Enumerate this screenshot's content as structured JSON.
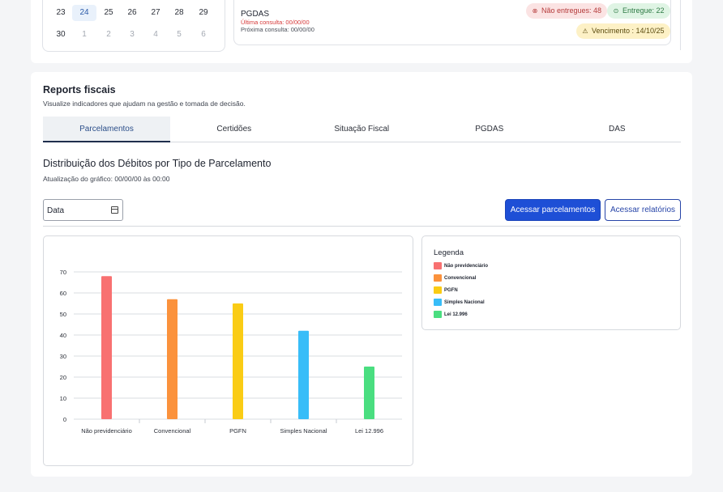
{
  "calendar": {
    "rows": [
      [
        {
          "day": "23",
          "muted": false,
          "selected": false
        },
        {
          "day": "24",
          "muted": false,
          "selected": true
        },
        {
          "day": "25",
          "muted": false,
          "selected": false
        },
        {
          "day": "26",
          "muted": false,
          "selected": false
        },
        {
          "day": "27",
          "muted": false,
          "selected": false
        },
        {
          "day": "28",
          "muted": false,
          "selected": false
        },
        {
          "day": "29",
          "muted": false,
          "selected": false
        }
      ],
      [
        {
          "day": "30",
          "muted": false,
          "selected": false
        },
        {
          "day": "1",
          "muted": true,
          "selected": false
        },
        {
          "day": "2",
          "muted": true,
          "selected": false
        },
        {
          "day": "3",
          "muted": true,
          "selected": false
        },
        {
          "day": "4",
          "muted": true,
          "selected": false
        },
        {
          "day": "5",
          "muted": true,
          "selected": false
        },
        {
          "day": "6",
          "muted": true,
          "selected": false
        }
      ]
    ]
  },
  "pgdas_card": {
    "title": "PGDAS",
    "last_query": "Última consulta: 00/00/00",
    "next_query": "Próxima consulta: 00/00/00",
    "not_delivered": "Não entregues: 48",
    "delivered": "Entregue: 22",
    "due": "Vencimento : 14/10/25"
  },
  "reports": {
    "title": "Reports fiscais",
    "subtitle": "Visualize indicadores que ajudam na gestão e tomada de decisão.",
    "tabs": [
      {
        "label": "Parcelamentos",
        "active": true
      },
      {
        "label": "Certidões",
        "active": false
      },
      {
        "label": "Situação Fiscal",
        "active": false
      },
      {
        "label": "PGDAS",
        "active": false
      },
      {
        "label": "DAS",
        "active": false
      }
    ],
    "chart_title": "Distribuição dos Débitos por Tipo de Parcelamento",
    "chart_update": "Atualização do gráfico: 00/00/00 às 00:00",
    "date_value": "Data",
    "btn_installments": "Acessar parcelamentos",
    "btn_reports": "Acessar relatórios",
    "legend_title": "Legenda"
  },
  "chart_data": {
    "type": "bar",
    "title": "Distribuição dos Débitos por Tipo de Parcelamento",
    "categories": [
      "Não previdenciário",
      "Convencional",
      "PGFN",
      "Simples Nacional",
      "Lei 12.996"
    ],
    "values": [
      68,
      57,
      55,
      42,
      25
    ],
    "colors": [
      "#f87171",
      "#fb923c",
      "#facc15",
      "#38bdf8",
      "#4ade80"
    ],
    "ylim": [
      0,
      70
    ],
    "yticks": [
      0,
      10,
      20,
      30,
      40,
      50,
      60,
      70
    ],
    "grid": true,
    "legend": [
      "Não previdenciário",
      "Convencional",
      "PGFN",
      "Simples Nacional",
      "Lei 12.996"
    ]
  }
}
